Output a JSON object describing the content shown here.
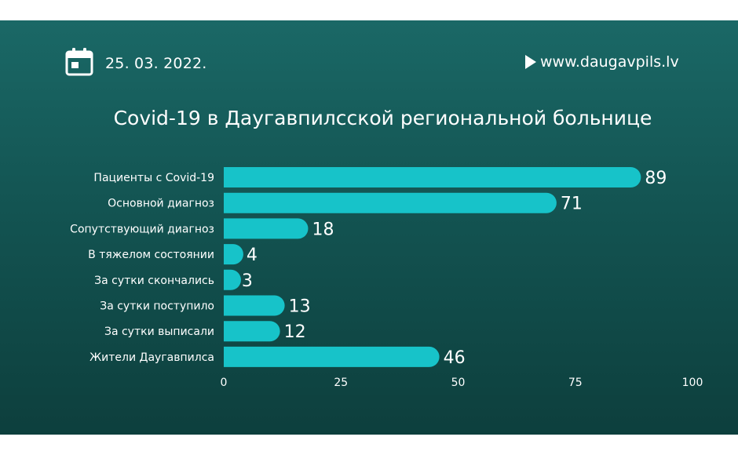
{
  "header": {
    "date": "25. 03. 2022.",
    "site": "www.daugavpils.lv",
    "calendar_icon": "calendar-icon",
    "play_icon": "play-icon"
  },
  "colors": {
    "bar": "#17c3c9",
    "text": "#ffffff"
  },
  "chart_data": {
    "type": "bar",
    "orientation": "horizontal",
    "title": "Covid-19 в Даугавпилсской региональной больнице",
    "categories": [
      "Пациенты с Covid-19",
      "Основной диагноз",
      "Сопутствующий диагноз",
      "В тяжелом состоянии",
      "За сутки скончались",
      "За сутки поступило",
      "За сутки выписали",
      "Жители Даугавпилса"
    ],
    "values": [
      89,
      71,
      18,
      4,
      3,
      13,
      12,
      46
    ],
    "xlim": [
      0,
      100
    ],
    "xticks": [
      0,
      25,
      50,
      75,
      100
    ],
    "grid": false,
    "legend": "none"
  }
}
